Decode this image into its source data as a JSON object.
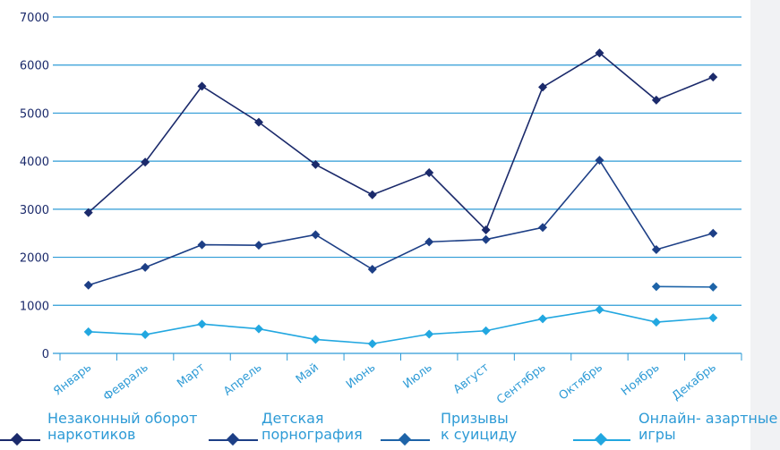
{
  "chart_data": {
    "type": "line",
    "categories": [
      "Январь",
      "Февраль",
      "Март",
      "Апрель",
      "Май",
      "Июнь",
      "Июль",
      "Август",
      "Сентябрь",
      "Октябрь",
      "Ноябрь",
      "Декабрь"
    ],
    "yticks": [
      "0",
      "1000",
      "2000",
      "3000",
      "4000",
      "5000",
      "6000",
      "7000"
    ],
    "ylim": [
      0,
      7000
    ],
    "grid": true,
    "legend_position": "bottom",
    "series": [
      {
        "name": "Незаконный оборот\nнаркотиков",
        "color": "#1b2a6b",
        "values": [
          2930,
          3980,
          5560,
          4810,
          3930,
          3300,
          3760,
          2570,
          5540,
          6250,
          5270,
          5750
        ]
      },
      {
        "name": "Детская\nпорнография",
        "color": "#1d3f86",
        "values": [
          1420,
          1790,
          2260,
          2250,
          2470,
          1750,
          2320,
          2370,
          2620,
          4020,
          2160,
          2500
        ]
      },
      {
        "name": "Призывы\nк суициду",
        "color": "#1e64a8",
        "values": [
          null,
          null,
          null,
          null,
          null,
          null,
          null,
          null,
          null,
          null,
          1390,
          1380
        ]
      },
      {
        "name": "Онлайн- азартные\nигры",
        "color": "#22a7e0",
        "values": [
          450,
          390,
          610,
          510,
          290,
          200,
          400,
          470,
          720,
          910,
          650,
          740
        ]
      }
    ]
  }
}
